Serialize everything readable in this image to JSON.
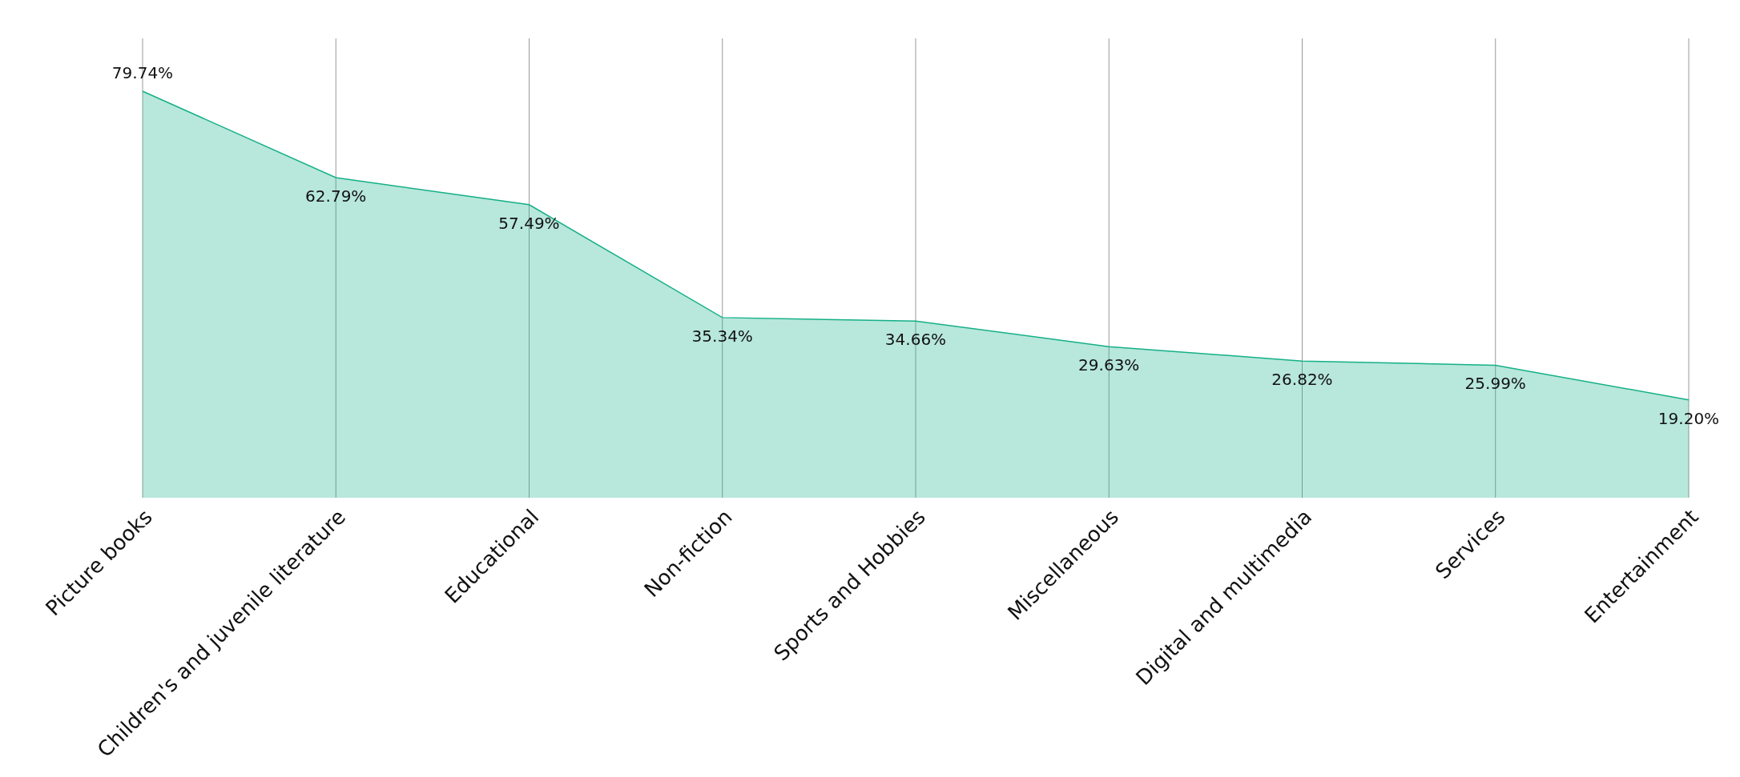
{
  "chart_data": {
    "type": "area",
    "categories": [
      "Picture books",
      "Children's and juvenile literature",
      "Educational",
      "Non-fiction",
      "Sports and Hobbies",
      "Miscellaneous",
      "Digital and multimedia",
      "Services",
      "Entertainment"
    ],
    "series": [
      {
        "color": "#14b087",
        "values": [
          79.74,
          62.79,
          57.49,
          35.34,
          34.66,
          29.63,
          26.82,
          25.99,
          19.2
        ],
        "value_labels": [
          "79.74%",
          "62.79%",
          "57.49%",
          "35.34%",
          "34.66%",
          "29.63%",
          "26.82%",
          "25.99%",
          "19.20%"
        ]
      }
    ],
    "grid": "x",
    "tick_labels": "x",
    "legend": false
  }
}
